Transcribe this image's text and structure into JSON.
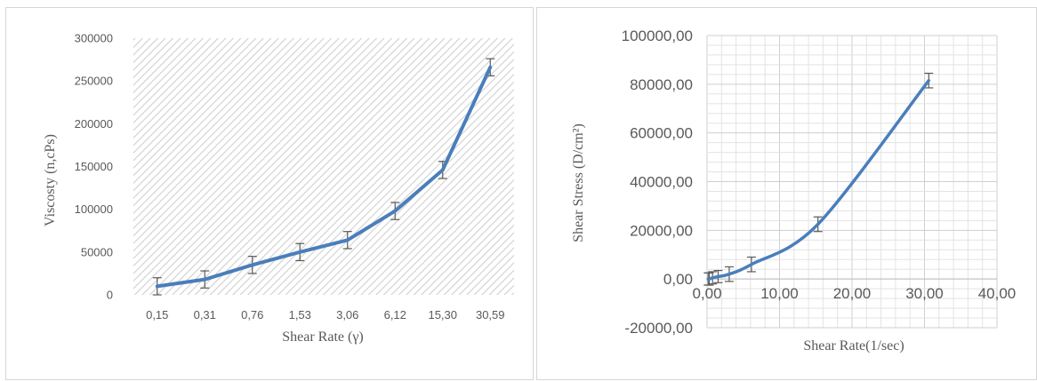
{
  "charts": [
    {
      "xlabel": "Shear Rate (γ)",
      "ylabel": "Viscosty (n,cPs)",
      "xticks": [
        "0,15",
        "0,31",
        "0,76",
        "1,53",
        "3,06",
        "6,12",
        "15,30",
        "30,59"
      ],
      "yticks": [
        "0",
        "50000",
        "100000",
        "150000",
        "200000",
        "250000",
        "300000"
      ]
    },
    {
      "xlabel": "Shear Rate(1/sec)",
      "ylabel": "Shear Stress (D/cm²)",
      "xticks": [
        "0,00",
        "10,00",
        "20,00",
        "30,00",
        "40,00"
      ],
      "yticks": [
        "-20000,00",
        "0,00",
        "20000,00",
        "40000,00",
        "60000,00",
        "80000,00",
        "100000,00"
      ]
    }
  ],
  "colors": {
    "series": "#4a7ebb",
    "error_bar": "#595959",
    "grid": "#d9d9d9",
    "hatch": "#d0d0d0"
  },
  "chart_data": [
    {
      "type": "line",
      "categories": [
        "0,15",
        "0,31",
        "0,76",
        "1,53",
        "3,06",
        "6,12",
        "15,30",
        "30,59"
      ],
      "values": [
        10000,
        18000,
        35000,
        50000,
        64000,
        98000,
        146000,
        266000
      ],
      "error": [
        10000,
        10000,
        10000,
        10000,
        10000,
        10000,
        10000,
        10000
      ],
      "xlabel": "Shear Rate (γ)",
      "ylabel": "Viscosty (n,cPs)",
      "ylim": [
        0,
        300000
      ],
      "grid": false,
      "legend": "none"
    },
    {
      "type": "scatter",
      "x": [
        0.15,
        0.31,
        0.76,
        1.53,
        3.06,
        6.12,
        15.3,
        30.59
      ],
      "y": [
        0,
        0,
        500,
        1000,
        2000,
        6000,
        22500,
        81500
      ],
      "error": [
        2500,
        2500,
        2500,
        2500,
        3000,
        3000,
        3000,
        3000
      ],
      "xlabel": "Shear Rate(1/sec)",
      "ylabel": "Shear Stress (D/cm²)",
      "xlim": [
        0,
        40
      ],
      "ylim": [
        -20000,
        100000
      ],
      "grid": true,
      "legend": "none"
    }
  ]
}
